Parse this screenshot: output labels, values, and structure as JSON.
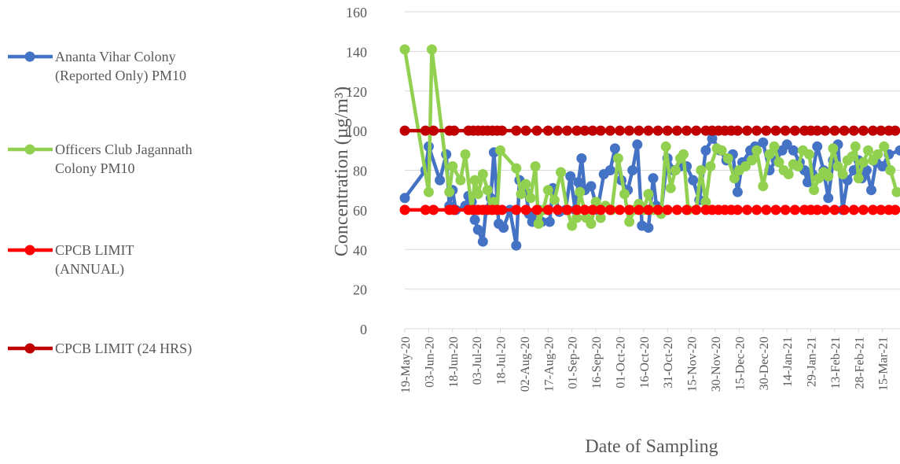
{
  "chart_data": {
    "type": "line",
    "title": "",
    "xlabel": "Date of Sampling",
    "ylabel": "Concentration (µg/m³)",
    "ylim": [
      0,
      160
    ],
    "y_ticks": [
      0,
      20,
      40,
      60,
      80,
      100,
      120,
      140,
      160
    ],
    "x_tick_labels": [
      "19-May-20",
      "03-Jun-20",
      "18-Jun-20",
      "03-Jul-20",
      "18-Jul-20",
      "02-Aug-20",
      "17-Aug-20",
      "01-Sep-20",
      "16-Sep-20",
      "01-Oct-20",
      "16-Oct-20",
      "31-Oct-20",
      "15-Nov-20",
      "30-Nov-20",
      "15-Dec-20",
      "30-Dec-20",
      "14-Jan-21",
      "29-Jan-21",
      "13-Feb-21",
      "28-Feb-21",
      "15-Mar-21"
    ],
    "x_start": "2020-05-19",
    "x_end": "2021-03-26",
    "grid": "horizontal",
    "legend_position": "left",
    "series": [
      {
        "name": "Ananta Vihar Colony (Reported Only) PM10",
        "color": "#4472C4",
        "points": [
          [
            "2020-05-19",
            66
          ],
          [
            "2020-06-01",
            80
          ],
          [
            "2020-06-03",
            92
          ],
          [
            "2020-06-10",
            75
          ],
          [
            "2020-06-14",
            88
          ],
          [
            "2020-06-16",
            62
          ],
          [
            "2020-06-18",
            70
          ],
          [
            "2020-06-20",
            60
          ],
          [
            "2020-06-26",
            62
          ],
          [
            "2020-06-28",
            67
          ],
          [
            "2020-06-30",
            64
          ],
          [
            "2020-07-02",
            55
          ],
          [
            "2020-07-04",
            50
          ],
          [
            "2020-07-07",
            44
          ],
          [
            "2020-07-09",
            60
          ],
          [
            "2020-07-12",
            66
          ],
          [
            "2020-07-14",
            89
          ],
          [
            "2020-07-17",
            53
          ],
          [
            "2020-07-20",
            51
          ],
          [
            "2020-07-24",
            60
          ],
          [
            "2020-07-28",
            42
          ],
          [
            "2020-07-30",
            75
          ],
          [
            "2020-08-03",
            69
          ],
          [
            "2020-08-05",
            58
          ],
          [
            "2020-08-07",
            54
          ],
          [
            "2020-08-11",
            60
          ],
          [
            "2020-08-13",
            54
          ],
          [
            "2020-08-18",
            54
          ],
          [
            "2020-08-20",
            71
          ],
          [
            "2020-08-24",
            59
          ],
          [
            "2020-08-28",
            60
          ],
          [
            "2020-08-31",
            77
          ],
          [
            "2020-09-03",
            60
          ],
          [
            "2020-09-05",
            74
          ],
          [
            "2020-09-07",
            86
          ],
          [
            "2020-09-09",
            70
          ],
          [
            "2020-09-13",
            72
          ],
          [
            "2020-09-17",
            60
          ],
          [
            "2020-09-21",
            78
          ],
          [
            "2020-09-25",
            80
          ],
          [
            "2020-09-28",
            91
          ],
          [
            "2020-10-02",
            75
          ],
          [
            "2020-10-06",
            70
          ],
          [
            "2020-10-09",
            80
          ],
          [
            "2020-10-12",
            93
          ],
          [
            "2020-10-15",
            52
          ],
          [
            "2020-10-19",
            51
          ],
          [
            "2020-10-22",
            76
          ],
          [
            "2020-10-24",
            62
          ],
          [
            "2020-10-27",
            60
          ],
          [
            "2020-10-31",
            86
          ],
          [
            "2020-11-04",
            80
          ],
          [
            "2020-11-08",
            82
          ],
          [
            "2020-11-12",
            82
          ],
          [
            "2020-11-16",
            75
          ],
          [
            "2020-11-20",
            65
          ],
          [
            "2020-11-24",
            90
          ],
          [
            "2020-11-28",
            96
          ],
          [
            "2020-12-03",
            90
          ],
          [
            "2020-12-07",
            85
          ],
          [
            "2020-12-11",
            88
          ],
          [
            "2020-12-14",
            69
          ],
          [
            "2020-12-17",
            84
          ],
          [
            "2020-12-22",
            90
          ],
          [
            "2020-12-25",
            92
          ],
          [
            "2020-12-30",
            94
          ],
          [
            "2021-01-03",
            80
          ],
          [
            "2021-01-07",
            85
          ],
          [
            "2021-01-11",
            90
          ],
          [
            "2021-01-14",
            93
          ],
          [
            "2021-01-18",
            90
          ],
          [
            "2021-01-22",
            84
          ],
          [
            "2021-01-25",
            80
          ],
          [
            "2021-01-27",
            74
          ],
          [
            "2021-01-30",
            78
          ],
          [
            "2021-02-02",
            92
          ],
          [
            "2021-02-06",
            80
          ],
          [
            "2021-02-09",
            66
          ],
          [
            "2021-02-12",
            85
          ],
          [
            "2021-02-15",
            93
          ],
          [
            "2021-02-18",
            60
          ],
          [
            "2021-02-21",
            75
          ],
          [
            "2021-02-25",
            80
          ],
          [
            "2021-02-28",
            85
          ],
          [
            "2021-03-02",
            76
          ],
          [
            "2021-03-05",
            80
          ],
          [
            "2021-03-08",
            70
          ],
          [
            "2021-03-11",
            84
          ],
          [
            "2021-03-15",
            82
          ],
          [
            "2021-03-19",
            88
          ],
          [
            "2021-03-26",
            90
          ]
        ]
      },
      {
        "name": "Officers Club Jagannath Colony PM10",
        "color": "#92D050",
        "points": [
          [
            "2020-05-19",
            141
          ],
          [
            "2020-06-03",
            69
          ],
          [
            "2020-06-05",
            141
          ],
          [
            "2020-06-16",
            69
          ],
          [
            "2020-06-18",
            82
          ],
          [
            "2020-06-23",
            75
          ],
          [
            "2020-06-26",
            88
          ],
          [
            "2020-06-30",
            60
          ],
          [
            "2020-07-02",
            75
          ],
          [
            "2020-07-04",
            68
          ],
          [
            "2020-07-07",
            78
          ],
          [
            "2020-07-10",
            70
          ],
          [
            "2020-07-12",
            60
          ],
          [
            "2020-07-14",
            64
          ],
          [
            "2020-07-16",
            60
          ],
          [
            "2020-07-18",
            90
          ],
          [
            "2020-07-28",
            81
          ],
          [
            "2020-07-31",
            68
          ],
          [
            "2020-08-03",
            73
          ],
          [
            "2020-08-06",
            66
          ],
          [
            "2020-08-09",
            82
          ],
          [
            "2020-08-11",
            53
          ],
          [
            "2020-08-14",
            60
          ],
          [
            "2020-08-17",
            70
          ],
          [
            "2020-08-21",
            65
          ],
          [
            "2020-08-25",
            79
          ],
          [
            "2020-08-29",
            60
          ],
          [
            "2020-09-01",
            52
          ],
          [
            "2020-09-04",
            56
          ],
          [
            "2020-09-06",
            69
          ],
          [
            "2020-09-10",
            56
          ],
          [
            "2020-09-13",
            53
          ],
          [
            "2020-09-16",
            64
          ],
          [
            "2020-09-19",
            56
          ],
          [
            "2020-09-22",
            62
          ],
          [
            "2020-09-26",
            60
          ],
          [
            "2020-09-30",
            86
          ],
          [
            "2020-10-04",
            68
          ],
          [
            "2020-10-07",
            54
          ],
          [
            "2020-10-10",
            60
          ],
          [
            "2020-10-13",
            63
          ],
          [
            "2020-10-16",
            60
          ],
          [
            "2020-10-19",
            68
          ],
          [
            "2020-10-22",
            60
          ],
          [
            "2020-10-27",
            58
          ],
          [
            "2020-10-30",
            92
          ],
          [
            "2020-11-02",
            71
          ],
          [
            "2020-11-05",
            80
          ],
          [
            "2020-11-08",
            86
          ],
          [
            "2020-11-10",
            88
          ],
          [
            "2020-11-13",
            60
          ],
          [
            "2020-11-18",
            60
          ],
          [
            "2020-11-21",
            80
          ],
          [
            "2020-11-24",
            64
          ],
          [
            "2020-11-27",
            82
          ],
          [
            "2020-12-01",
            91
          ],
          [
            "2020-12-04",
            90
          ],
          [
            "2020-12-08",
            86
          ],
          [
            "2020-12-12",
            76
          ],
          [
            "2020-12-15",
            80
          ],
          [
            "2020-12-19",
            82
          ],
          [
            "2020-12-23",
            85
          ],
          [
            "2020-12-26",
            90
          ],
          [
            "2020-12-30",
            72
          ],
          [
            "2021-01-03",
            88
          ],
          [
            "2021-01-06",
            92
          ],
          [
            "2021-01-09",
            84
          ],
          [
            "2021-01-12",
            80
          ],
          [
            "2021-01-15",
            78
          ],
          [
            "2021-01-18",
            83
          ],
          [
            "2021-01-21",
            82
          ],
          [
            "2021-01-24",
            90
          ],
          [
            "2021-01-28",
            88
          ],
          [
            "2021-01-31",
            70
          ],
          [
            "2021-02-03",
            76
          ],
          [
            "2021-02-06",
            79
          ],
          [
            "2021-02-09",
            77
          ],
          [
            "2021-02-12",
            91
          ],
          [
            "2021-02-15",
            82
          ],
          [
            "2021-02-18",
            78
          ],
          [
            "2021-02-21",
            85
          ],
          [
            "2021-02-24",
            87
          ],
          [
            "2021-02-26",
            92
          ],
          [
            "2021-02-28",
            76
          ],
          [
            "2021-03-03",
            84
          ],
          [
            "2021-03-06",
            90
          ],
          [
            "2021-03-09",
            85
          ],
          [
            "2021-03-12",
            88
          ],
          [
            "2021-03-16",
            92
          ],
          [
            "2021-03-20",
            80
          ],
          [
            "2021-03-24",
            69
          ]
        ]
      },
      {
        "name": "CPCB LIMIT (ANNUAL)",
        "color": "#FF0000",
        "value": 60,
        "dates": [
          "2020-05-19",
          "2020-06-01",
          "2020-06-06",
          "2020-06-16",
          "2020-06-19",
          "2020-06-28",
          "2020-07-01",
          "2020-07-04",
          "2020-07-07",
          "2020-07-10",
          "2020-07-13",
          "2020-07-16",
          "2020-07-19",
          "2020-07-28",
          "2020-08-03",
          "2020-08-10",
          "2020-08-17",
          "2020-08-23",
          "2020-08-29",
          "2020-09-04",
          "2020-09-09",
          "2020-09-14",
          "2020-09-19",
          "2020-09-25",
          "2020-10-01",
          "2020-10-07",
          "2020-10-13",
          "2020-10-19",
          "2020-10-25",
          "2020-10-31",
          "2020-11-06",
          "2020-11-12",
          "2020-11-18",
          "2020-11-24",
          "2020-11-28",
          "2020-12-02",
          "2020-12-06",
          "2020-12-10",
          "2020-12-14",
          "2020-12-20",
          "2020-12-26",
          "2021-01-01",
          "2021-01-07",
          "2021-01-13",
          "2021-01-19",
          "2021-01-25",
          "2021-01-29",
          "2021-02-02",
          "2021-02-07",
          "2021-02-13",
          "2021-02-19",
          "2021-02-25",
          "2021-03-03",
          "2021-03-09",
          "2021-03-14",
          "2021-03-19",
          "2021-03-23"
        ]
      },
      {
        "name": "CPCB LIMIT (24 HRS)",
        "color": "#C00000",
        "value": 100,
        "dates": [
          "2020-05-19",
          "2020-06-01",
          "2020-06-06",
          "2020-06-16",
          "2020-06-19",
          "2020-06-28",
          "2020-07-01",
          "2020-07-04",
          "2020-07-07",
          "2020-07-10",
          "2020-07-13",
          "2020-07-16",
          "2020-07-19",
          "2020-07-28",
          "2020-08-03",
          "2020-08-10",
          "2020-08-17",
          "2020-08-23",
          "2020-08-29",
          "2020-09-04",
          "2020-09-09",
          "2020-09-14",
          "2020-09-19",
          "2020-09-25",
          "2020-10-01",
          "2020-10-07",
          "2020-10-13",
          "2020-10-19",
          "2020-10-25",
          "2020-10-31",
          "2020-11-06",
          "2020-11-12",
          "2020-11-18",
          "2020-11-24",
          "2020-11-28",
          "2020-12-02",
          "2020-12-06",
          "2020-12-10",
          "2020-12-14",
          "2020-12-20",
          "2020-12-26",
          "2021-01-01",
          "2021-01-07",
          "2021-01-13",
          "2021-01-19",
          "2021-01-25",
          "2021-01-29",
          "2021-02-02",
          "2021-02-07",
          "2021-02-13",
          "2021-02-19",
          "2021-02-25",
          "2021-03-03",
          "2021-03-09",
          "2021-03-14",
          "2021-03-19",
          "2021-03-23"
        ]
      }
    ],
    "legend": [
      {
        "lines": [
          "Ananta Vihar Colony",
          "(Reported Only) PM10"
        ],
        "color": "#4472C4"
      },
      {
        "lines": [
          "Officers Club Jagannath",
          "Colony PM10"
        ],
        "color": "#92D050"
      },
      {
        "lines": [
          "CPCB LIMIT",
          "(ANNUAL)"
        ],
        "color": "#FF0000"
      },
      {
        "lines": [
          "CPCB LIMIT (24 HRS)"
        ],
        "color": "#C00000"
      }
    ]
  }
}
